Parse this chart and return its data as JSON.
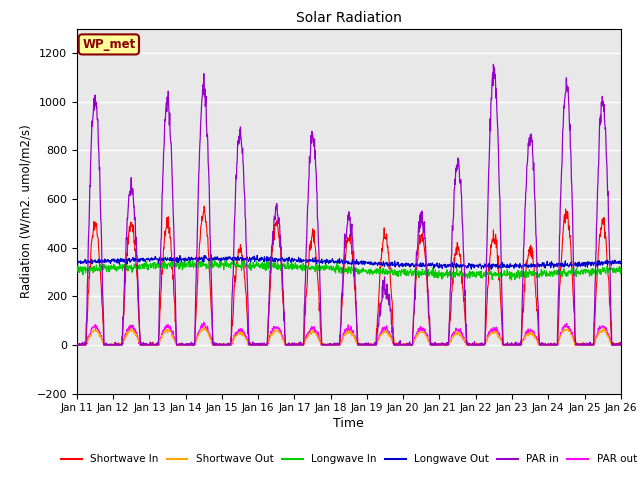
{
  "title": "Solar Radiation",
  "xlabel": "Time",
  "ylabel": "Radiation (W/m2. umol/m2/s)",
  "ylim": [
    -200,
    1300
  ],
  "yticks": [
    -200,
    0,
    200,
    400,
    600,
    800,
    1000,
    1200
  ],
  "xlim": [
    0,
    15
  ],
  "xtick_labels": [
    "Jan 11",
    "Jan 12",
    "Jan 13",
    "Jan 14",
    "Jan 15",
    "Jan 16",
    "Jan 17",
    "Jan 18",
    "Jan 19",
    "Jan 20",
    "Jan 21",
    "Jan 22",
    "Jan 23",
    "Jan 24",
    "Jan 25",
    "Jan 26"
  ],
  "annotation_text": "WP_met",
  "annotation_color": "#8B0000",
  "annotation_bg": "#FFFF99",
  "line_colors": {
    "shortwave_in": "#FF0000",
    "shortwave_out": "#FFA500",
    "longwave_in": "#00CC00",
    "longwave_out": "#0000CC",
    "par_in": "#9900CC",
    "par_out": "#FF00FF"
  },
  "legend_labels": [
    "Shortwave In",
    "Shortwave Out",
    "Longwave In",
    "Longwave Out",
    "PAR in",
    "PAR out"
  ],
  "background_color": "#FFFFFF",
  "plot_bg_color": "#E8E8E8",
  "grid_color": "#FFFFFF",
  "n_points": 1500
}
